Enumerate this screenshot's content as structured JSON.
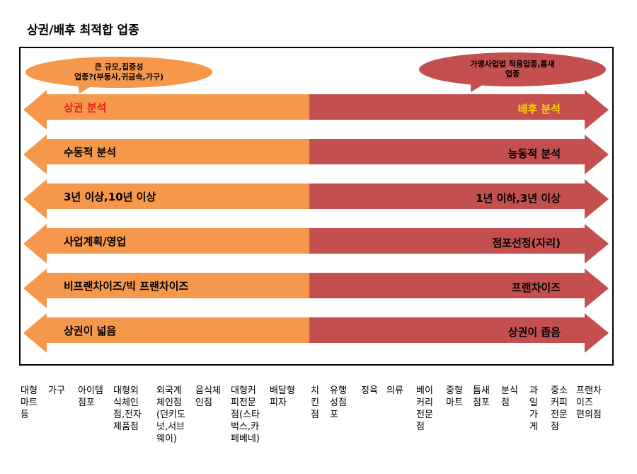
{
  "title": "상권/배후 최적합 업종",
  "colors": {
    "left_arrow": "#f6984b",
    "right_arrow": "#c44f4f",
    "left_bubble": "#f6984b",
    "right_bubble": "#c44f4f",
    "left_highlight": "#e8231b",
    "right_highlight": "#ffd700"
  },
  "bubbles": {
    "left": "큰 규모,집중성\n업종?(부동사,귀금속,가구)",
    "right": "가맹사업법 적용업종,틈새\n업종"
  },
  "rows": [
    {
      "left": "상권 분석",
      "right": "배후 분석"
    },
    {
      "left": "수동적 분석",
      "right": "능동적 분석"
    },
    {
      "left": "3년 이상,10년 이상",
      "right": "1년 이하,3년 이상"
    },
    {
      "left": "사업계획/영업",
      "right": "점포선정(자리)"
    },
    {
      "left": "비프랜차이즈/빅 프랜차이즈",
      "right": "프랜차이즈"
    },
    {
      "left": "상권이 넓음",
      "right": "상권이 좁음"
    }
  ],
  "categories": [
    "대형\n마트\n등",
    "가구",
    "아이템\n점포",
    "대형외\n식체인\n점,전자\n제품점",
    "외국계\n체인점\n(던키도\n넛,서브\n웨이)",
    "음식체\n인점",
    "대형커\n피전문\n점(스타\n벅스,카\n페베네)",
    "배달형\n피자",
    "치\n킨\n점",
    "유행\n성점\n포",
    "정육",
    "의류",
    "베이\n커리\n전문\n점",
    "중형\n마트",
    "틈새\n점포",
    "분식\n점",
    "과\n일\n가\n게",
    "중소\n커피\n전문\n점",
    "프랜차\n이즈\n편의점"
  ]
}
